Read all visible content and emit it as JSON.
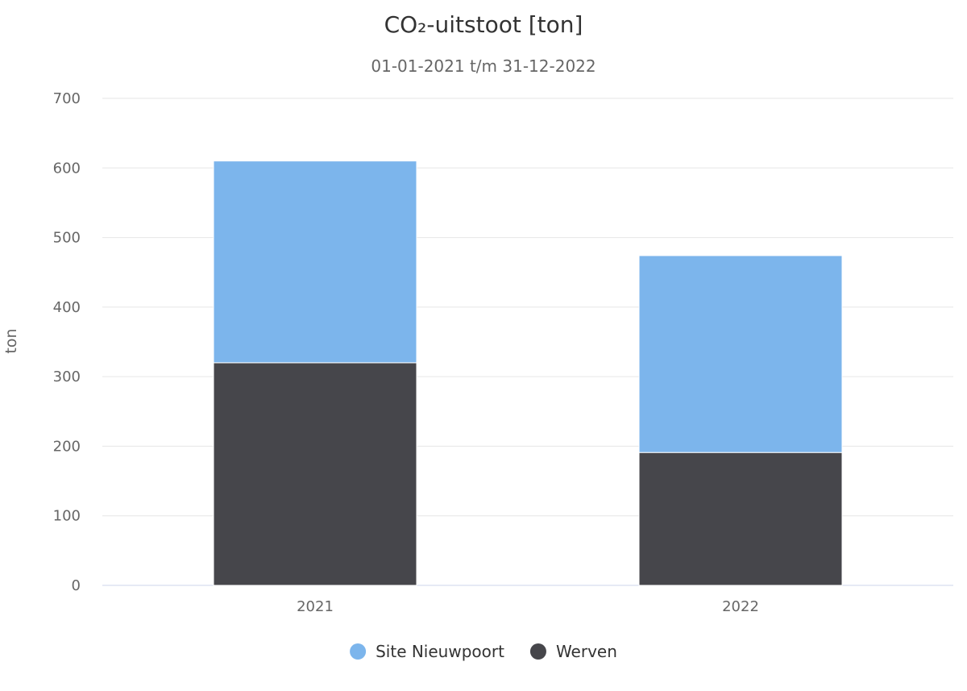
{
  "chart_data": {
    "type": "bar",
    "stacked": true,
    "title": "CO₂-uitstoot [ton]",
    "subtitle": "01-01-2021 t/m 31-12-2022",
    "xlabel": "",
    "ylabel": "ton",
    "categories": [
      "2021",
      "2022"
    ],
    "ylim": [
      0,
      700
    ],
    "yticks": [
      0,
      100,
      200,
      300,
      400,
      500,
      600,
      700
    ],
    "grid": true,
    "legend_position": "bottom",
    "series": [
      {
        "name": "Werven",
        "color": "#46464b",
        "values": [
          320,
          191
        ]
      },
      {
        "name": "Site Nieuwpoort",
        "color": "#7cb5ec",
        "values": [
          290,
          283
        ]
      }
    ],
    "legend_order": [
      "Site Nieuwpoort",
      "Werven"
    ]
  }
}
